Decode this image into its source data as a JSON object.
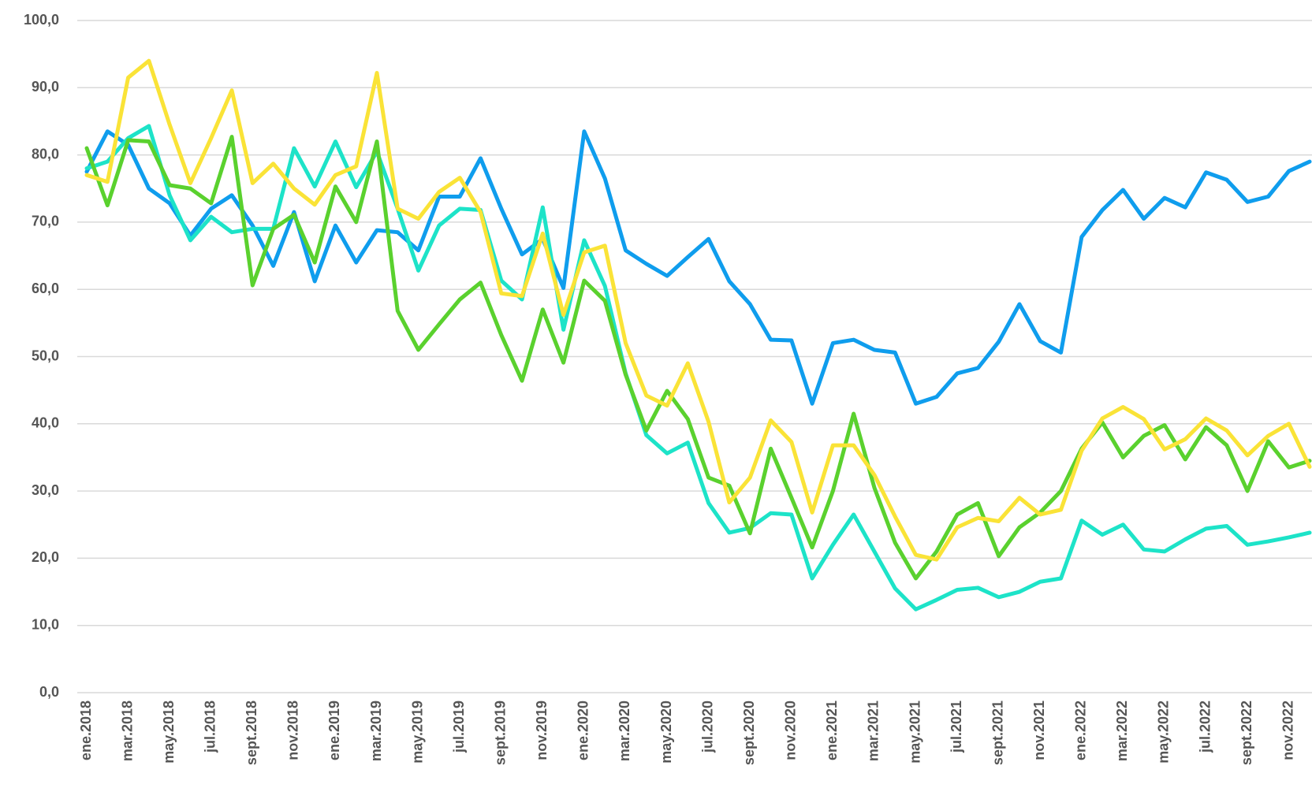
{
  "chart_data": {
    "type": "line",
    "categories": [
      "ene.2018",
      null,
      "mar.2018",
      null,
      "may.2018",
      null,
      "jul.2018",
      null,
      "sept.2018",
      null,
      "nov.2018",
      null,
      "ene.2019",
      null,
      "mar.2019",
      null,
      "may.2019",
      null,
      "jul.2019",
      null,
      "sept.2019",
      null,
      "nov.2019",
      null,
      "ene.2020",
      null,
      "mar.2020",
      null,
      "may.2020",
      null,
      "jul.2020",
      null,
      "sept.2020",
      null,
      "nov.2020",
      null,
      "ene.2021",
      null,
      "mar.2021",
      null,
      "may.2021",
      null,
      "jul.2021",
      null,
      "sept.2021",
      null,
      "nov.2021",
      null,
      "ene.2022",
      null,
      "mar.2022",
      null,
      "may.2022",
      null,
      "jul.2022",
      null,
      "sept.2022",
      null,
      "nov.2022",
      null
    ],
    "series": [
      {
        "color": "#0f9ded",
        "values": [
          77.5,
          83.5,
          81.5,
          75,
          72.8,
          68,
          72,
          74,
          69.5,
          63.5,
          71.5,
          61.2,
          69.5,
          64,
          68.8,
          68.5,
          65.8,
          73.8,
          73.8,
          79.5,
          72,
          65.2,
          67.5,
          60.2,
          83.5,
          76.5,
          65.8,
          63.8,
          62,
          64.8,
          67.5,
          61.2,
          57.8,
          52.5,
          52.4,
          43,
          52,
          52.5,
          51,
          50.6,
          43,
          44,
          47.5,
          48.3,
          52.2,
          57.8,
          52.3,
          50.6,
          67.8,
          71.8,
          74.8,
          70.5,
          73.6,
          72.2,
          77.4,
          76.3,
          73,
          73.8,
          77.6,
          79
        ]
      },
      {
        "color": "#1de3c8",
        "values": [
          78,
          79,
          82.5,
          84.3,
          74,
          67.3,
          70.8,
          68.5,
          69,
          69,
          81,
          75.3,
          82,
          75.2,
          80.5,
          72,
          62.8,
          69.5,
          72,
          71.8,
          61.3,
          58.5,
          72.2,
          54,
          67.3,
          60.5,
          47.5,
          38.3,
          35.6,
          37.2,
          28.2,
          23.8,
          24.5,
          26.7,
          26.5,
          17,
          22,
          26.5,
          21,
          15.5,
          12.4,
          13.8,
          15.3,
          15.6,
          14.2,
          15,
          16.5,
          17,
          25.6,
          23.5,
          25,
          21.3,
          21,
          22.8,
          24.4,
          24.8,
          22,
          22.5,
          23.1,
          23.8
        ]
      },
      {
        "color": "#5ad12e",
        "values": [
          81,
          72.5,
          82.2,
          82,
          75.5,
          75,
          72.8,
          82.7,
          60.6,
          69,
          71.1,
          64,
          75.3,
          70,
          82,
          56.8,
          51,
          54.8,
          58.5,
          61,
          53.2,
          46.4,
          57,
          49.1,
          61.3,
          58.3,
          47.3,
          39,
          44.9,
          40.7,
          32,
          30.8,
          23.7,
          36.3,
          29,
          21.6,
          30,
          41.5,
          30.5,
          22.3,
          17,
          21,
          26.5,
          28.2,
          20.3,
          24.6,
          26.8,
          30,
          36.3,
          40.2,
          35,
          38.2,
          39.8,
          34.7,
          39.5,
          36.8,
          30,
          37.4,
          33.5,
          34.5
        ]
      },
      {
        "color": "#fae337",
        "values": [
          77,
          76,
          91.5,
          94,
          84.5,
          75.8,
          82.5,
          89.6,
          75.8,
          78.7,
          75,
          72.6,
          77,
          78.3,
          92.2,
          72,
          70.5,
          74.5,
          76.6,
          71.5,
          59.4,
          59,
          68.3,
          56.2,
          65.5,
          66.5,
          52,
          44.2,
          42.7,
          49,
          40.3,
          28.3,
          32,
          40.5,
          37.3,
          26.8,
          36.8,
          36.8,
          32.4,
          26.2,
          20.5,
          19.8,
          24.6,
          26,
          25.5,
          29,
          26.5,
          27.2,
          36,
          40.8,
          42.5,
          40.7,
          36.2,
          37.7,
          40.8,
          39,
          35.3,
          38.2,
          40,
          33.6
        ]
      }
    ],
    "ylim": [
      0,
      100
    ],
    "yticks": [
      {
        "value": 0,
        "label": "0,0"
      },
      {
        "value": 10,
        "label": "10,0"
      },
      {
        "value": 20,
        "label": "20,0"
      },
      {
        "value": 30,
        "label": "30,0"
      },
      {
        "value": 40,
        "label": "40,0"
      },
      {
        "value": 50,
        "label": "50,0"
      },
      {
        "value": 60,
        "label": "60,0"
      },
      {
        "value": 70,
        "label": "70,0"
      },
      {
        "value": 80,
        "label": "80,0"
      },
      {
        "value": 90,
        "label": "90,0"
      },
      {
        "value": 100,
        "label": "100,0"
      }
    ],
    "grid": true
  }
}
